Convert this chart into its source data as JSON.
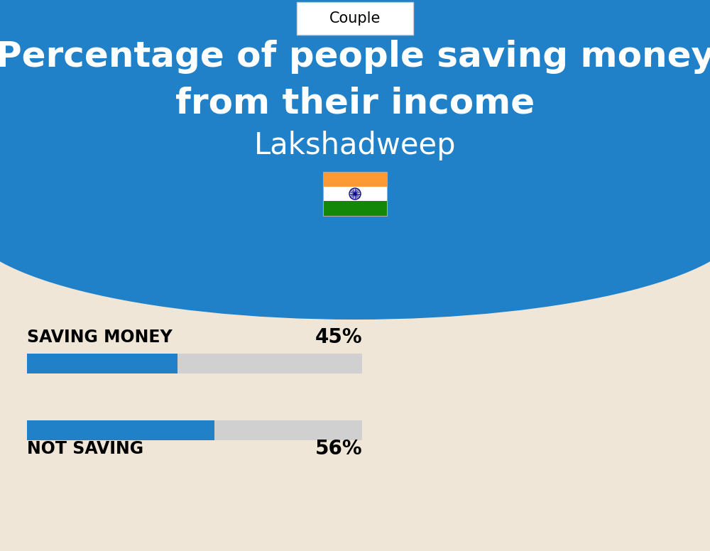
{
  "title_line1": "Percentage of people saving money",
  "title_line2": "from their income",
  "subtitle": "Lakshadweep",
  "category_label": "Couple",
  "bg_color": "#f0e6d8",
  "header_bg_color": "#2080c8",
  "bar_label1": "SAVING MONEY",
  "bar_value1": 45,
  "bar_label2": "NOT SAVING",
  "bar_value2": 56,
  "bar_color": "#2080c8",
  "bar_bg_color": "#d0d0d0",
  "title_color": "#ffffff",
  "subtitle_color": "#ffffff",
  "label_color": "#000000",
  "title_fontsize": 36,
  "subtitle_fontsize": 30,
  "bar_label_fontsize": 17,
  "bar_value_fontsize": 20,
  "category_fontsize": 15,
  "fig_width": 10.0,
  "fig_height": 7.76
}
